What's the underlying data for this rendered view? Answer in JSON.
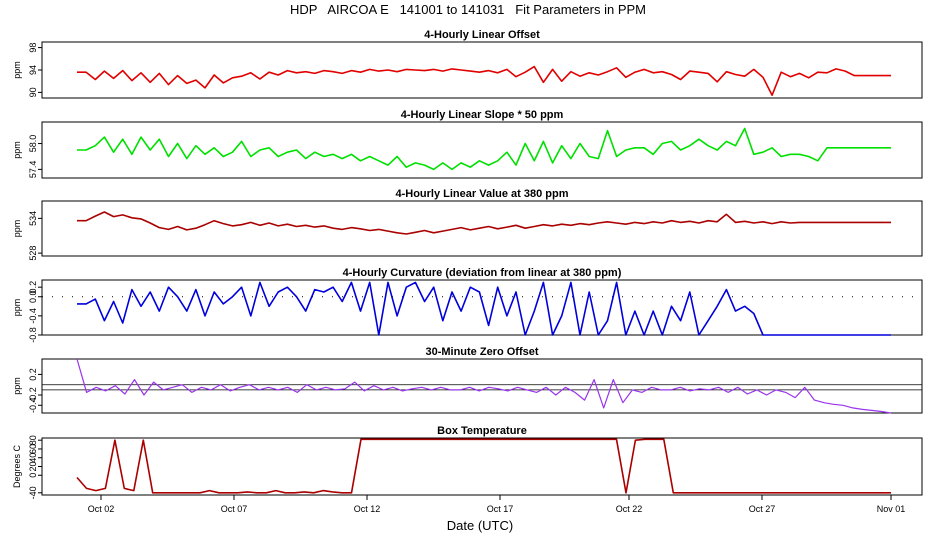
{
  "title": "HDP   AIRCOA E   141001 to 141031   Fit Parameters in PPM",
  "xlabel": "Date (UTC)",
  "x_ticks": [
    "Oct 02",
    "Oct 07",
    "Oct 12",
    "Oct 17",
    "Oct 22",
    "Oct 27",
    "Nov 01"
  ],
  "chart_data": [
    {
      "type": "line",
      "title": "4-Hourly Linear Offset",
      "ylabel": "ppm",
      "yticks": [
        "90",
        "94",
        "98"
      ],
      "ylim": [
        89,
        99
      ],
      "color": "#e00000",
      "x_range": [
        "Oct 01",
        "Oct 31"
      ],
      "series": [
        {
          "values": [
            93.6,
            93.6,
            92.3,
            93.8,
            92.5,
            93.9,
            92.1,
            93.5,
            91.8,
            93.4,
            91.4,
            93.0,
            91.6,
            92.2,
            90.8,
            93.1,
            91.7,
            92.6,
            92.9,
            93.5,
            92.4,
            93.6,
            93.1,
            93.9,
            93.5,
            93.7,
            93.4,
            93.9,
            93.7,
            93.4,
            93.9,
            93.6,
            94.1,
            93.8,
            94.0,
            93.7,
            94.1,
            94.0,
            93.9,
            94.1,
            93.8,
            94.2,
            94.0,
            93.8,
            93.6,
            93.9,
            93.5,
            94.1,
            92.8,
            93.6,
            94.6,
            91.8,
            94.1,
            92.0,
            93.7,
            92.9,
            93.5,
            93.1,
            93.7,
            94.4,
            92.7,
            93.6,
            94.1,
            93.5,
            93.7,
            93.2,
            92.3,
            93.8,
            93.6,
            93.4,
            91.9,
            93.7,
            93.2,
            92.9,
            94.1,
            92.7,
            89.5,
            93.6,
            92.8,
            93.4,
            92.6,
            93.6,
            93.5,
            94.2,
            93.8,
            93.0,
            93.0,
            93.0,
            93.0,
            93.0
          ]
        }
      ]
    },
    {
      "type": "line",
      "title": "4-Hourly Linear Slope * 50 ppm",
      "ylabel": "ppm",
      "yticks": [
        "57.4",
        "58.0"
      ],
      "ylim": [
        57.2,
        58.5
      ],
      "color": "#00e000",
      "series": [
        {
          "values": [
            57.85,
            57.85,
            57.95,
            58.15,
            57.8,
            58.1,
            57.75,
            58.15,
            57.85,
            58.1,
            57.7,
            58.0,
            57.65,
            57.95,
            57.75,
            57.9,
            57.7,
            57.8,
            58.05,
            57.7,
            57.85,
            57.9,
            57.7,
            57.8,
            57.85,
            57.65,
            57.8,
            57.7,
            57.75,
            57.65,
            57.75,
            57.6,
            57.7,
            57.6,
            57.5,
            57.7,
            57.45,
            57.55,
            57.5,
            57.4,
            57.55,
            57.4,
            57.55,
            57.45,
            57.6,
            57.5,
            57.6,
            57.8,
            57.5,
            58.0,
            57.6,
            58.05,
            57.55,
            57.95,
            57.65,
            58.0,
            57.7,
            57.65,
            58.3,
            57.7,
            57.85,
            57.9,
            57.9,
            57.75,
            58.0,
            58.05,
            57.85,
            57.95,
            58.1,
            57.95,
            57.85,
            58.05,
            57.95,
            58.35,
            57.75,
            57.8,
            57.9,
            57.7,
            57.75,
            57.75,
            57.7,
            57.6,
            57.9,
            57.9,
            57.9,
            57.9,
            57.9,
            57.9,
            57.9,
            57.9
          ]
        }
      ]
    },
    {
      "type": "line",
      "title": "4-Hourly Linear Value at 380 ppm",
      "ylabel": "ppm",
      "yticks": [
        "528",
        "534"
      ],
      "ylim": [
        527.5,
        537
      ],
      "color": "#aa0000",
      "series": [
        {
          "values": [
            533.6,
            533.6,
            534.4,
            535.1,
            534.3,
            534.6,
            534.1,
            533.9,
            533.2,
            532.4,
            532.1,
            532.6,
            532.0,
            532.3,
            532.9,
            533.6,
            533.1,
            532.7,
            532.9,
            533.3,
            532.8,
            533.2,
            532.7,
            533.0,
            532.6,
            532.8,
            532.5,
            532.7,
            532.3,
            532.1,
            532.4,
            532.2,
            531.9,
            532.1,
            531.8,
            531.5,
            531.3,
            531.6,
            531.9,
            531.5,
            531.8,
            532.1,
            532.4,
            532.0,
            532.3,
            532.6,
            532.2,
            532.5,
            532.8,
            532.3,
            532.6,
            532.9,
            532.7,
            533.0,
            532.8,
            533.1,
            532.9,
            533.2,
            533.4,
            533.2,
            533.0,
            533.3,
            533.1,
            533.4,
            533.2,
            533.6,
            533.3,
            533.5,
            533.2,
            533.6,
            533.4,
            534.7,
            533.3,
            533.5,
            533.2,
            533.4,
            533.1,
            533.4,
            533.2,
            533.3,
            533.3,
            533.3,
            533.3,
            533.3,
            533.3,
            533.3,
            533.3,
            533.3,
            533.3,
            533.3
          ]
        }
      ]
    },
    {
      "type": "line",
      "title": "4-Hourly Curvature (deviation from linear at 380 ppm)",
      "ylabel": "ppm",
      "yticks": [
        "-0.8",
        "-0.4",
        "0.0",
        "0.2"
      ],
      "ylim": [
        -0.8,
        0.35
      ],
      "color": "#0000dd",
      "series": [
        {
          "values": [
            -0.15,
            -0.15,
            -0.05,
            -0.5,
            -0.1,
            -0.55,
            0.15,
            -0.2,
            0.1,
            -0.3,
            0.2,
            0.0,
            -0.3,
            0.15,
            -0.4,
            0.1,
            -0.15,
            0.0,
            0.2,
            -0.4,
            0.3,
            -0.2,
            0.1,
            0.2,
            0.0,
            -0.3,
            0.15,
            0.1,
            0.2,
            -0.1,
            0.3,
            -0.3,
            0.3,
            -0.8,
            0.3,
            -0.4,
            0.2,
            0.3,
            -0.1,
            0.2,
            -0.5,
            0.1,
            -0.3,
            0.2,
            0.1,
            -0.6,
            0.2,
            -0.4,
            0.1,
            -0.8,
            -0.3,
            0.3,
            -0.8,
            -0.4,
            0.3,
            -0.8,
            0.1,
            -0.8,
            -0.5,
            0.3,
            -0.8,
            -0.3,
            -0.8,
            -0.3,
            -0.8,
            -0.2,
            -0.5,
            0.1,
            -0.8,
            -0.5,
            -0.2,
            0.15,
            -0.3,
            -0.2,
            -0.35,
            -0.8,
            -0.8,
            -0.8,
            -0.8,
            -0.8,
            -0.8,
            -0.8,
            -0.8,
            -0.8,
            -0.8,
            -0.8,
            -0.8,
            -0.8,
            -0.8,
            -0.8
          ]
        }
      ]
    },
    {
      "type": "line",
      "title": "30-Minute Zero Offset",
      "ylabel": "ppm",
      "yticks": [
        "-0.4",
        "-0.2",
        "0.2"
      ],
      "ylim": [
        -0.55,
        0.5
      ],
      "color": "#9933ee",
      "reference_lines": [
        0.0,
        -0.1
      ],
      "series": [
        {
          "values": [
            0.5,
            -0.15,
            -0.05,
            -0.12,
            -0.02,
            -0.18,
            0.1,
            -0.2,
            0.05,
            -0.1,
            -0.05,
            0.0,
            -0.15,
            -0.05,
            -0.1,
            0.0,
            -0.12,
            -0.05,
            0.0,
            -0.1,
            -0.05,
            -0.1,
            -0.05,
            -0.15,
            0.0,
            -0.1,
            -0.05,
            -0.1,
            -0.08,
            0.05,
            -0.12,
            -0.02,
            -0.1,
            -0.05,
            -0.12,
            -0.08,
            -0.05,
            -0.1,
            -0.05,
            -0.1,
            -0.1,
            -0.05,
            -0.12,
            -0.05,
            -0.08,
            -0.12,
            -0.05,
            -0.1,
            -0.15,
            -0.05,
            -0.2,
            -0.05,
            -0.15,
            -0.3,
            0.1,
            -0.45,
            0.1,
            -0.35,
            -0.1,
            -0.15,
            -0.05,
            -0.1,
            -0.1,
            -0.05,
            -0.12,
            -0.08,
            -0.1,
            -0.05,
            -0.15,
            -0.05,
            -0.18,
            -0.1,
            -0.2,
            -0.1,
            -0.15,
            -0.25,
            -0.05,
            -0.3,
            -0.35,
            -0.38,
            -0.4,
            -0.45,
            -0.48,
            -0.5,
            -0.52,
            -0.55
          ]
        }
      ]
    },
    {
      "type": "line",
      "title": "Box Temperature",
      "ylabel": "Degrees C",
      "yticks": [
        "-40",
        "0",
        "20",
        "40",
        "60",
        "80"
      ],
      "ylim": [
        -45,
        85
      ],
      "color": "#aa0000",
      "series": [
        {
          "values": [
            -5,
            -30,
            -35,
            -30,
            80,
            -30,
            -35,
            80,
            -40,
            -40,
            -40,
            -40,
            -40,
            -40,
            -35,
            -40,
            -40,
            -40,
            -38,
            -40,
            -40,
            -35,
            -40,
            -40,
            -38,
            -40,
            -35,
            -38,
            -40,
            -40,
            82,
            82,
            82,
            82,
            82,
            82,
            82,
            82,
            82,
            82,
            82,
            82,
            82,
            82,
            82,
            82,
            82,
            82,
            82,
            82,
            82,
            82,
            82,
            82,
            82,
            82,
            82,
            82,
            -40,
            80,
            82,
            82,
            82,
            -40,
            -40,
            -40,
            -40,
            -40,
            -40,
            -40,
            -40,
            -40,
            -40,
            -40,
            -40,
            -40,
            -40,
            -40,
            -40,
            -40,
            -40,
            -40,
            -40,
            -40,
            -40,
            -40,
            -40
          ]
        }
      ]
    }
  ]
}
